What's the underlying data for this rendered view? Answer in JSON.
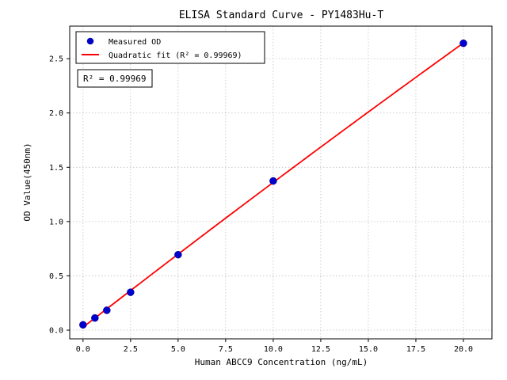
{
  "chart_data": {
    "type": "scatter",
    "title": "ELISA Standard Curve - PY1483Hu-T",
    "xlabel": "Human ABCC9 Concentration (ng/mL)",
    "ylabel": "OD Value(450nm)",
    "xlim": [
      -0.7,
      21.5
    ],
    "ylim": [
      -0.08,
      2.8
    ],
    "x_ticks": [
      0.0,
      2.5,
      5.0,
      7.5,
      10.0,
      12.5,
      15.0,
      17.5,
      20.0
    ],
    "y_ticks": [
      0.0,
      0.5,
      1.0,
      1.5,
      2.0,
      2.5
    ],
    "x_tick_labels": [
      "0.0",
      "2.5",
      "5.0",
      "7.5",
      "10.0",
      "12.5",
      "15.0",
      "17.5",
      "20.0"
    ],
    "y_tick_labels": [
      "0.0",
      "0.5",
      "1.0",
      "1.5",
      "2.0",
      "2.5"
    ],
    "grid": true,
    "legend_position": "upper left",
    "series": [
      {
        "name": "Measured OD",
        "type": "scatter",
        "color": "#0000cd",
        "x": [
          0,
          0.625,
          1.25,
          2.5,
          5,
          10,
          20
        ],
        "y": [
          0.049,
          0.112,
          0.183,
          0.349,
          0.695,
          1.374,
          2.642
        ]
      },
      {
        "name": "Quadratic fit (R² = 0.99969)",
        "type": "line",
        "color": "#ff0000",
        "fit": "quadratic",
        "fit_x_range": [
          0,
          20
        ]
      }
    ],
    "annotation": "R² = 0.99969"
  },
  "legend": {
    "items": [
      {
        "label": "Measured OD",
        "marker": "dot",
        "color": "#0000cd"
      },
      {
        "label": "Quadratic fit (R² = 0.99969)",
        "marker": "line",
        "color": "#ff0000"
      }
    ]
  },
  "colors": {
    "scatter": "#0000cd",
    "fit_line": "#ff0000",
    "grid": "#c0c0c0",
    "axes": "#000000",
    "background": "#ffffff"
  }
}
